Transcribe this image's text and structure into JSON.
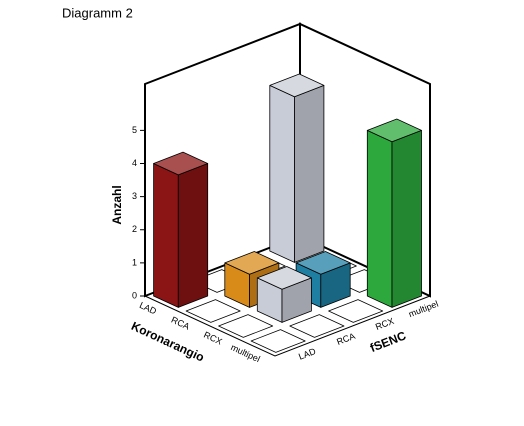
{
  "chart_data": {
    "type": "bar3d",
    "title": "Diagramm 2",
    "x_label": "Koronarangio",
    "z_label": "fSENC",
    "y_label": "Anzahl",
    "x_categories": [
      "LAD",
      "RCA",
      "RCX",
      "multipel"
    ],
    "z_categories": [
      "LAD",
      "RCA",
      "RCX",
      "multipel"
    ],
    "values": [
      [
        4,
        0,
        0,
        5
      ],
      [
        0,
        1,
        0,
        0
      ],
      [
        0,
        1,
        1,
        0
      ],
      [
        0,
        0,
        0,
        5
      ]
    ],
    "colors": [
      [
        "#8b1414",
        "#ffffff",
        "#ffffff",
        "#c8ccd6"
      ],
      [
        "#ffffff",
        "#d98b19",
        "#ffffff",
        "#ffffff"
      ],
      [
        "#ffffff",
        "#c8ccd6",
        "#1f7fa3",
        "#ffffff"
      ],
      [
        "#ffffff",
        "#ffffff",
        "#ffffff",
        "#2ca83c"
      ]
    ],
    "ylim": [
      0,
      6.4
    ],
    "yticks": [
      0,
      1,
      2,
      3,
      4,
      5
    ]
  }
}
